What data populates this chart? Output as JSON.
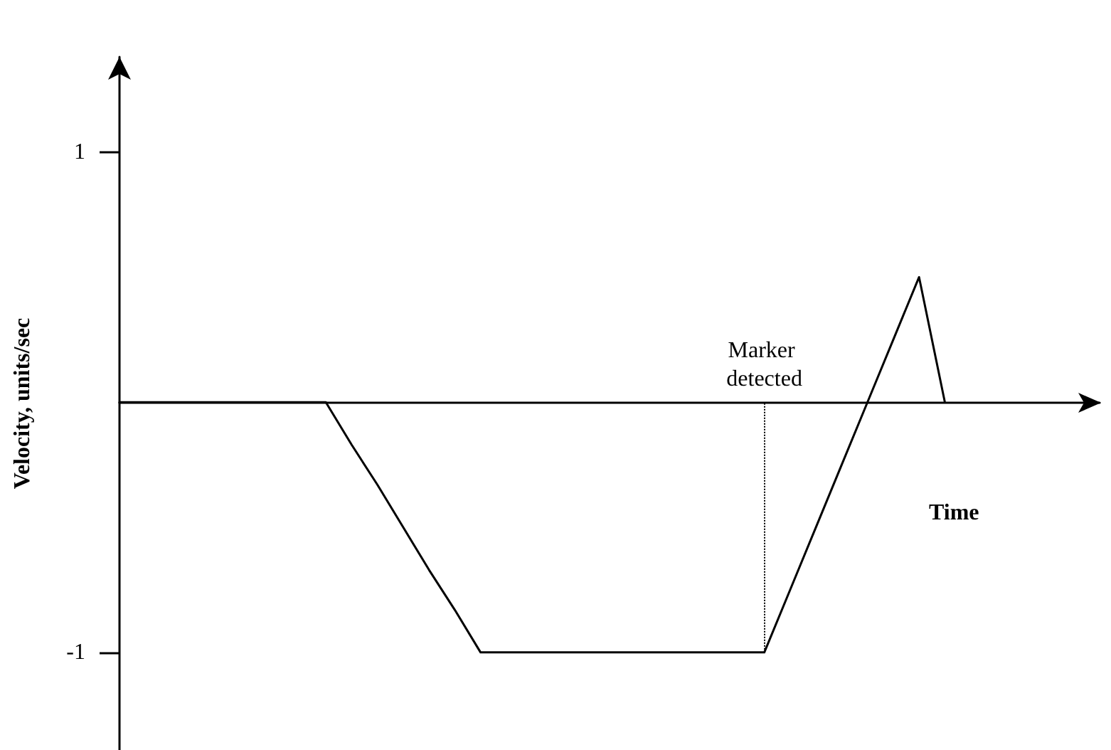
{
  "chart_data": {
    "type": "line",
    "xlabel": "Time",
    "ylabel": "Velocity, units/sec",
    "categories": [
      null,
      null,
      null,
      null,
      null,
      null,
      null,
      null,
      null,
      null,
      null,
      null,
      null,
      null,
      null,
      null,
      null,
      null,
      null,
      null,
      null,
      null,
      null,
      null,
      null,
      null,
      null,
      null,
      null,
      null,
      null,
      null,
      null,
      null,
      null,
      null,
      null,
      null,
      null
    ],
    "series": [
      {
        "color": "#000000",
        "values": [
          0,
          0,
          0,
          0,
          0,
          0,
          0,
          0,
          0,
          -0.17,
          -0.33,
          -0.5,
          -0.67,
          -0.83,
          -1,
          -1,
          -1,
          -1,
          -1,
          -1,
          -1,
          -1,
          -1,
          -1,
          -1,
          -1,
          -0.75,
          -0.5,
          -0.25,
          0,
          0.25,
          0.5,
          0,
          null,
          null,
          null,
          null,
          null,
          null
        ]
      }
    ],
    "ylim": [
      -1.39,
      1.38
    ],
    "yticks": [
      1,
      -1
    ],
    "tick_labels": "y",
    "grid": false,
    "marker": "none",
    "line_style": "solid",
    "annotations": [
      "Marker detected"
    ]
  }
}
